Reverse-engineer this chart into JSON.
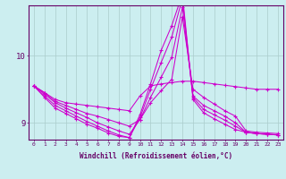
{
  "xlabel": "Windchill (Refroidissement éolien,°C)",
  "background_color": "#cceef0",
  "line_color": "#cc00cc",
  "grid_color": "#aacccc",
  "axis_color": "#660066",
  "text_color": "#660066",
  "xlim": [
    -0.5,
    23.5
  ],
  "ylim": [
    8.75,
    10.75
  ],
  "xticks": [
    0,
    1,
    2,
    3,
    4,
    5,
    6,
    7,
    8,
    9,
    10,
    11,
    12,
    13,
    14,
    15,
    16,
    17,
    18,
    19,
    20,
    21,
    22,
    23
  ],
  "yticks": [
    9,
    10
  ],
  "lines": [
    [
      9.55,
      9.45,
      9.35,
      9.3,
      9.28,
      9.26,
      9.24,
      9.22,
      9.2,
      9.18,
      9.4,
      9.55,
      9.58,
      9.6,
      9.62,
      9.62,
      9.6,
      9.58,
      9.56,
      9.54,
      9.52,
      9.5,
      9.5,
      9.5
    ],
    [
      9.55,
      9.45,
      9.32,
      9.26,
      9.2,
      9.14,
      9.1,
      9.05,
      9.0,
      8.95,
      9.05,
      9.3,
      9.48,
      9.65,
      10.58,
      9.5,
      9.38,
      9.28,
      9.18,
      9.1,
      8.88,
      8.86,
      8.85,
      8.84
    ],
    [
      9.55,
      9.43,
      9.3,
      9.22,
      9.15,
      9.08,
      9.0,
      8.94,
      8.88,
      8.83,
      9.05,
      9.38,
      9.68,
      9.98,
      10.72,
      9.4,
      9.26,
      9.18,
      9.1,
      9.0,
      8.86,
      8.84,
      8.83,
      8.82
    ],
    [
      9.55,
      9.4,
      9.26,
      9.18,
      9.1,
      9.02,
      8.95,
      8.88,
      8.82,
      8.78,
      9.08,
      9.5,
      9.9,
      10.28,
      10.85,
      9.38,
      9.2,
      9.12,
      9.04,
      8.95,
      8.86,
      8.84,
      8.83,
      8.82
    ],
    [
      9.55,
      9.38,
      9.22,
      9.14,
      9.06,
      8.98,
      8.92,
      8.85,
      8.8,
      8.78,
      9.12,
      9.58,
      10.08,
      10.45,
      10.92,
      9.35,
      9.15,
      9.06,
      8.98,
      8.9,
      8.86,
      8.84,
      8.83,
      8.82
    ]
  ]
}
